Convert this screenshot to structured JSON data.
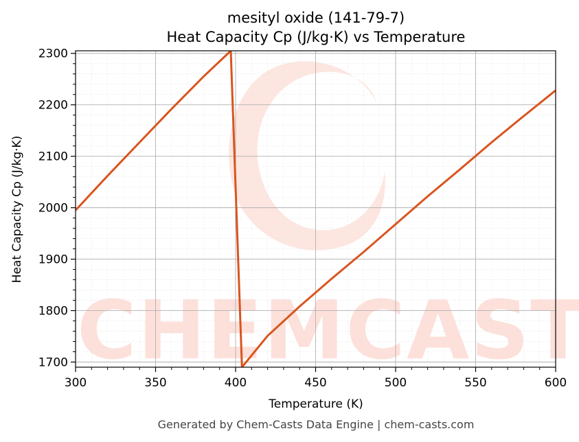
{
  "chart_data": {
    "type": "line",
    "title": "mesityl oxide (141-79-7)",
    "subtitle": "Heat Capacity Cp (J/kg·K) vs Temperature",
    "xlabel": "Temperature (K)",
    "ylabel": "Heat Capacity Cp (J/kg·K)",
    "xlim": [
      300,
      600
    ],
    "ylim": [
      1690,
      2305
    ],
    "xticks": [
      300,
      350,
      400,
      450,
      500,
      550,
      600
    ],
    "yticks": [
      1700,
      1800,
      1900,
      2000,
      2100,
      2200,
      2300
    ],
    "grid": true,
    "line_color": "#d9541e",
    "series": [
      {
        "x": [
          300,
          320,
          340,
          360,
          380,
          397,
          404,
          420,
          440,
          460,
          480,
          500,
          520,
          540,
          560,
          580,
          600
        ],
        "y": [
          1995,
          2062,
          2127,
          2192,
          2255,
          2305,
          1690,
          1751,
          1808,
          1862,
          1914,
          1968,
          2022,
          2074,
          2127,
          2178,
          2228
        ]
      }
    ]
  },
  "watermark": "CHEMCASTS",
  "footer": "Generated by Chem-Casts Data Engine | chem-casts.com"
}
